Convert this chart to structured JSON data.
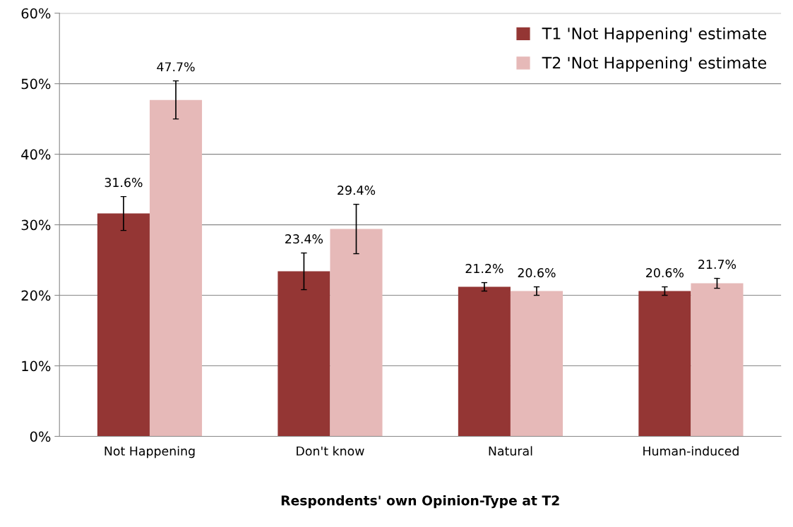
{
  "chart_data": {
    "type": "bar",
    "xlabel": "Respondents' own Opinion-Type at T2",
    "categories": [
      "Not Happening",
      "Don't know",
      "Natural",
      "Human-induced"
    ],
    "series": [
      {
        "name": "T1 'Not Happening' estimate",
        "color": "#943634",
        "values": [
          31.6,
          23.4,
          21.2,
          20.6
        ],
        "errors": [
          2.4,
          2.6,
          0.6,
          0.6
        ],
        "value_labels": [
          "31.6%",
          "23.4%",
          "21.2%",
          "20.6%"
        ]
      },
      {
        "name": "T2 'Not Happening' estimate",
        "color": "#e6b9b8",
        "values": [
          47.7,
          29.4,
          20.6,
          21.7
        ],
        "errors": [
          2.7,
          3.5,
          0.6,
          0.7
        ],
        "value_labels": [
          "47.7%",
          "29.4%",
          "20.6%",
          "21.7%"
        ]
      }
    ],
    "ylim": [
      0,
      60
    ],
    "yticks": [
      {
        "value": 0,
        "label": "0%"
      },
      {
        "value": 10,
        "label": "10%"
      },
      {
        "value": 20,
        "label": "20%"
      },
      {
        "value": 30,
        "label": "30%"
      },
      {
        "value": 40,
        "label": "40%"
      },
      {
        "value": 50,
        "label": "50%"
      },
      {
        "value": 60,
        "label": "60%"
      }
    ],
    "grid": "y",
    "legend": "top right"
  }
}
